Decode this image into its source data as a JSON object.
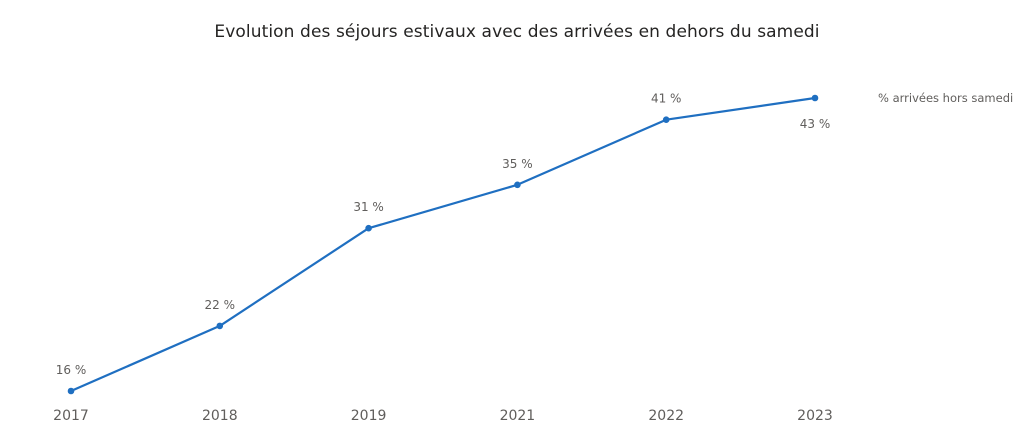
{
  "chart_data": {
    "type": "line",
    "title": "Evolution des séjours estivaux avec des arrivées en dehors du samedi",
    "categories": [
      "2017",
      "2018",
      "2019",
      "2021",
      "2022",
      "2023"
    ],
    "series": [
      {
        "name": "% arrivées hors samedi",
        "values": [
          16,
          22,
          31,
          35,
          41,
          43
        ],
        "labels": [
          "16 %",
          "22 %",
          "31 %",
          "35 %",
          "41 %",
          "43 %"
        ],
        "color": "#1f6fc1"
      }
    ],
    "ylim": [
      16,
      43
    ],
    "xlabel": "",
    "ylabel": "",
    "grid": false,
    "legend": "right-top"
  }
}
